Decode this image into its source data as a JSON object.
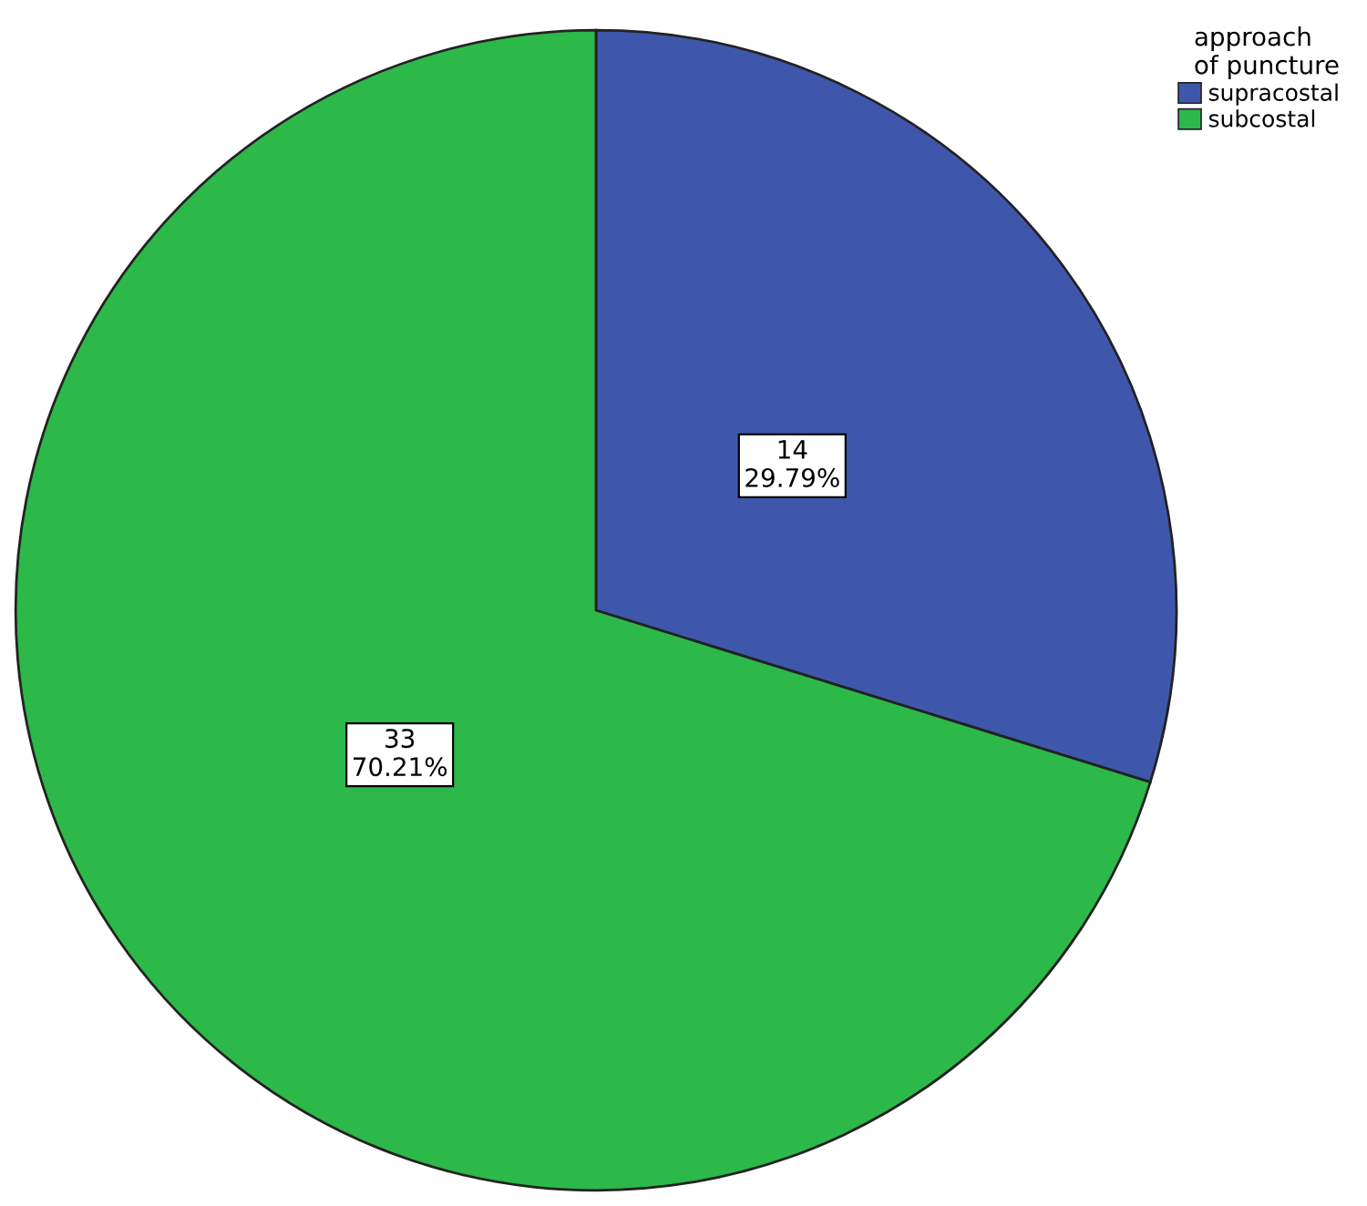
{
  "chart_data": {
    "type": "pie",
    "legend_title": "approach\nof puncture",
    "categories": [
      "supracostal",
      "subcostal"
    ],
    "values": [
      14,
      33
    ],
    "colors": [
      "#3f57ab",
      "#2db84a"
    ],
    "value_labels": [
      "14\n29.79%",
      "33\n70.21%"
    ],
    "legend": "top right"
  }
}
